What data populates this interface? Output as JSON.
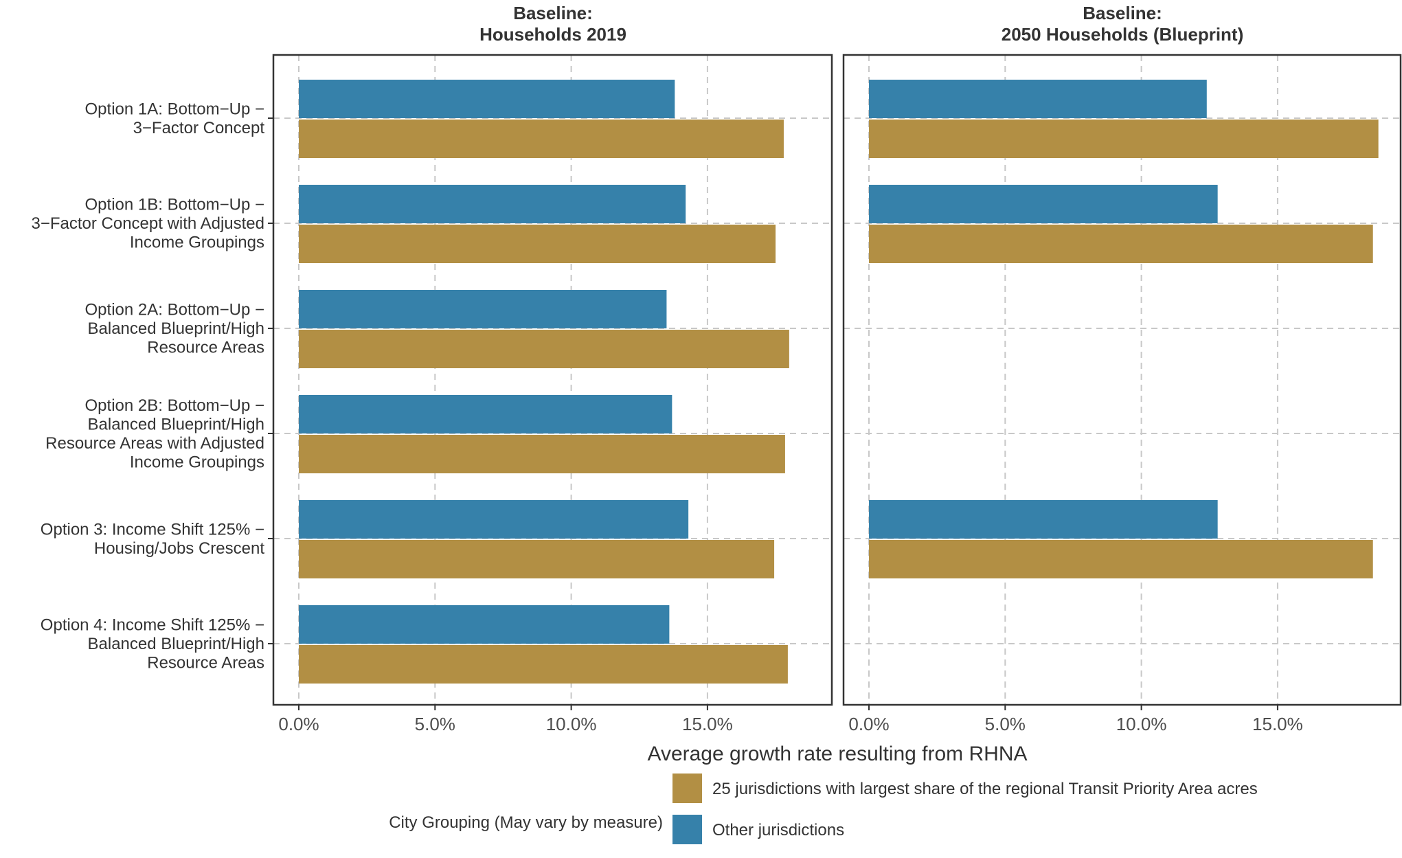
{
  "chart_data": {
    "type": "bar",
    "orientation": "horizontal",
    "xlabel": "Average growth rate resulting from RHNA",
    "xlim": [
      -0.01,
      0.19
    ],
    "x_ticks": [
      0,
      0.05,
      0.1,
      0.15
    ],
    "x_tick_labels": [
      "0.0%",
      "5.0%",
      "10.0%",
      "15.0%"
    ],
    "grid": true,
    "categories": [
      [
        "Option 1A: Bottom−Up −",
        "3−Factor Concept"
      ],
      [
        "Option 1B: Bottom−Up −",
        "3−Factor Concept with Adjusted",
        "Income Groupings"
      ],
      [
        "Option 2A: Bottom−Up −",
        "Balanced Blueprint/High",
        "Resource Areas"
      ],
      [
        "Option 2B: Bottom−Up −",
        "Balanced Blueprint/High",
        "Resource Areas with Adjusted",
        "Income Groupings"
      ],
      [
        "Option 3: Income Shift 125% −",
        "Housing/Jobs Crescent"
      ],
      [
        "Option 4: Income Shift 125% −",
        "Balanced Blueprint/High",
        "Resource Areas"
      ]
    ],
    "panels": [
      {
        "title_lines": [
          "Baseline:",
          "Households 2019"
        ],
        "series": [
          {
            "name": "Other jurisdictions",
            "color": "#3681aa",
            "values": [
              0.138,
              0.142,
              0.135,
              0.137,
              0.143,
              0.136
            ]
          },
          {
            "name": "25 jurisdictions with largest share of the regional Transit Priority Area acres",
            "color": "#b28f44",
            "values": [
              0.178,
              0.175,
              0.18,
              0.1785,
              0.1745,
              0.1795
            ]
          }
        ]
      },
      {
        "title_lines": [
          "Baseline:",
          "2050 Households (Blueprint)"
        ],
        "series": [
          {
            "name": "Other jurisdictions",
            "color": "#3681aa",
            "values": [
              0.124,
              0.128,
              null,
              null,
              0.128,
              null
            ]
          },
          {
            "name": "25 jurisdictions with largest share of the regional Transit Priority Area acres",
            "color": "#b28f44",
            "values": [
              0.187,
              0.185,
              null,
              null,
              0.185,
              null
            ]
          }
        ]
      }
    ],
    "legend": {
      "title": "City Grouping (May vary by measure)",
      "position": "bottom",
      "entries": [
        {
          "label": "25 jurisdictions with largest share of the regional Transit Priority Area acres",
          "color": "#b28f44"
        },
        {
          "label": "Other jurisdictions",
          "color": "#3681aa"
        }
      ]
    }
  }
}
